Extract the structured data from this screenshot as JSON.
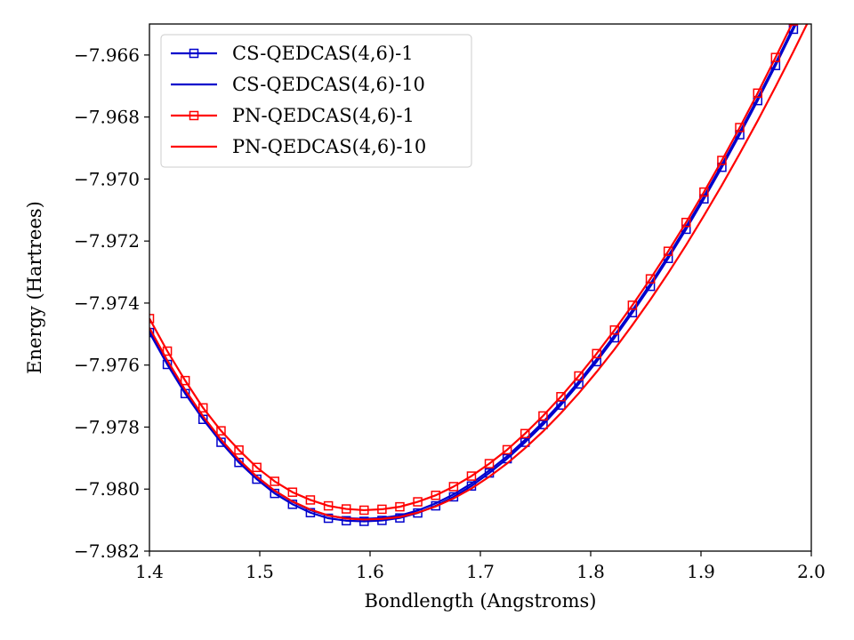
{
  "chart_data": {
    "type": "line",
    "title": "",
    "xlabel": "Bondlength (Angstroms)",
    "ylabel": "Energy (Hartrees)",
    "xlim": [
      1.4,
      2.0
    ],
    "ylim": [
      -7.982,
      -7.965
    ],
    "xticks": [
      1.4,
      1.5,
      1.6,
      1.7,
      1.8,
      1.9,
      2.0
    ],
    "xtick_labels": [
      "1.4",
      "1.5",
      "1.6",
      "1.7",
      "1.8",
      "1.9",
      "2.0"
    ],
    "yticks": [
      -7.982,
      -7.98,
      -7.978,
      -7.976,
      -7.974,
      -7.972,
      -7.97,
      -7.968,
      -7.966
    ],
    "ytick_labels": [
      "−7.982",
      "−7.980",
      "−7.978",
      "−7.976",
      "−7.974",
      "−7.972",
      "−7.970",
      "−7.968",
      "−7.966"
    ],
    "grid": false,
    "legend_position": "top-left",
    "series": [
      {
        "name": "CS-QEDCAS(4,6)-1",
        "color": "#0000cc",
        "marker": "square",
        "x": [
          1.4,
          1.4162,
          1.4324,
          1.4486,
          1.4649,
          1.4811,
          1.4973,
          1.5135,
          1.5297,
          1.5459,
          1.5622,
          1.5784,
          1.5946,
          1.6108,
          1.627,
          1.6432,
          1.6595,
          1.6757,
          1.6919,
          1.7081,
          1.7243,
          1.7405,
          1.7568,
          1.773,
          1.7892,
          1.8054,
          1.8216,
          1.8378,
          1.8541,
          1.8703,
          1.8865,
          1.9027,
          1.9189,
          1.9351,
          1.9514,
          1.9676,
          1.9838,
          2.0
        ],
        "y": [
          -7.97495,
          -7.97598,
          -7.97692,
          -7.97775,
          -7.97849,
          -7.97914,
          -7.97968,
          -7.98014,
          -7.98049,
          -7.98076,
          -7.98094,
          -7.98102,
          -7.98104,
          -7.98101,
          -7.98093,
          -7.98077,
          -7.98054,
          -7.98025,
          -7.9799,
          -7.97948,
          -7.97902,
          -7.97849,
          -7.97792,
          -7.97729,
          -7.97661,
          -7.97589,
          -7.97512,
          -7.97431,
          -7.97346,
          -7.97256,
          -7.97162,
          -7.97064,
          -7.96962,
          -7.96857,
          -7.96747,
          -7.96634,
          -7.96517,
          -7.96396
        ]
      },
      {
        "name": "CS-QEDCAS(4,6)-10",
        "color": "#0000cc",
        "marker": "none",
        "x": [
          1.4,
          1.4162,
          1.4324,
          1.4486,
          1.4649,
          1.4811,
          1.4973,
          1.5135,
          1.5297,
          1.5459,
          1.5622,
          1.5784,
          1.5946,
          1.6108,
          1.627,
          1.6432,
          1.6595,
          1.6757,
          1.6919,
          1.7081,
          1.7243,
          1.7405,
          1.7568,
          1.773,
          1.7892,
          1.8054,
          1.8216,
          1.8378,
          1.8541,
          1.8703,
          1.8865,
          1.9027,
          1.9189,
          1.9351,
          1.9514,
          1.9676,
          1.9838,
          2.0
        ],
        "y": [
          -7.97487,
          -7.9759,
          -7.97684,
          -7.97767,
          -7.97841,
          -7.97906,
          -7.9796,
          -7.98006,
          -7.98041,
          -7.98068,
          -7.98086,
          -7.98094,
          -7.98096,
          -7.98093,
          -7.98085,
          -7.98069,
          -7.98046,
          -7.98017,
          -7.97982,
          -7.9794,
          -7.97894,
          -7.97841,
          -7.97784,
          -7.97721,
          -7.97653,
          -7.97581,
          -7.97504,
          -7.97423,
          -7.97338,
          -7.97248,
          -7.97154,
          -7.97056,
          -7.96954,
          -7.96849,
          -7.96739,
          -7.96626,
          -7.96509,
          -7.96388
        ]
      },
      {
        "name": "PN-QEDCAS(4,6)-1",
        "color": "#ff0000",
        "marker": "square",
        "x": [
          1.4,
          1.4162,
          1.4324,
          1.4486,
          1.4649,
          1.4811,
          1.4973,
          1.5135,
          1.5297,
          1.5459,
          1.5622,
          1.5784,
          1.5946,
          1.6108,
          1.627,
          1.6432,
          1.6595,
          1.6757,
          1.6919,
          1.7081,
          1.7243,
          1.7405,
          1.7568,
          1.773,
          1.7892,
          1.8054,
          1.8216,
          1.8378,
          1.8541,
          1.8703,
          1.8865,
          1.9027,
          1.9189,
          1.9351,
          1.9514,
          1.9676,
          1.9838,
          2.0
        ],
        "y": [
          -7.9745,
          -7.97555,
          -7.9765,
          -7.97738,
          -7.97812,
          -7.97874,
          -7.9793,
          -7.97975,
          -7.9801,
          -7.98035,
          -7.98054,
          -7.98064,
          -7.98068,
          -7.98065,
          -7.98057,
          -7.98041,
          -7.9802,
          -7.97992,
          -7.97958,
          -7.97918,
          -7.97873,
          -7.97821,
          -7.97764,
          -7.97702,
          -7.97635,
          -7.97563,
          -7.97487,
          -7.97407,
          -7.97322,
          -7.97233,
          -7.9714,
          -7.97042,
          -7.9694,
          -7.96834,
          -7.96723,
          -7.96608,
          -7.9649,
          -7.96368
        ]
      },
      {
        "name": "PN-QEDCAS(4,6)-10",
        "color": "#ff0000",
        "marker": "none",
        "x": [
          1.4,
          1.4162,
          1.4324,
          1.4486,
          1.4649,
          1.4811,
          1.4973,
          1.5135,
          1.5297,
          1.5459,
          1.5622,
          1.5784,
          1.5946,
          1.6108,
          1.627,
          1.6432,
          1.6595,
          1.6757,
          1.6919,
          1.7081,
          1.7243,
          1.7405,
          1.7568,
          1.773,
          1.7892,
          1.8054,
          1.8216,
          1.8378,
          1.8541,
          1.8703,
          1.8865,
          1.9027,
          1.9189,
          1.9351,
          1.9514,
          1.9676,
          1.9838,
          2.0
        ],
        "y": [
          -7.9748,
          -7.97585,
          -7.9768,
          -7.97765,
          -7.9784,
          -7.97905,
          -7.9796,
          -7.98005,
          -7.9804,
          -7.98066,
          -7.98085,
          -7.98095,
          -7.98098,
          -7.98096,
          -7.9809,
          -7.98076,
          -7.98056,
          -7.9803,
          -7.97998,
          -7.9796,
          -7.97917,
          -7.97868,
          -7.97814,
          -7.97755,
          -7.97691,
          -7.97622,
          -7.97549,
          -7.97471,
          -7.97389,
          -7.97303,
          -7.97213,
          -7.97118,
          -7.9702,
          -7.96918,
          -7.96812,
          -7.96702,
          -7.96589,
          -7.96472
        ]
      }
    ]
  }
}
